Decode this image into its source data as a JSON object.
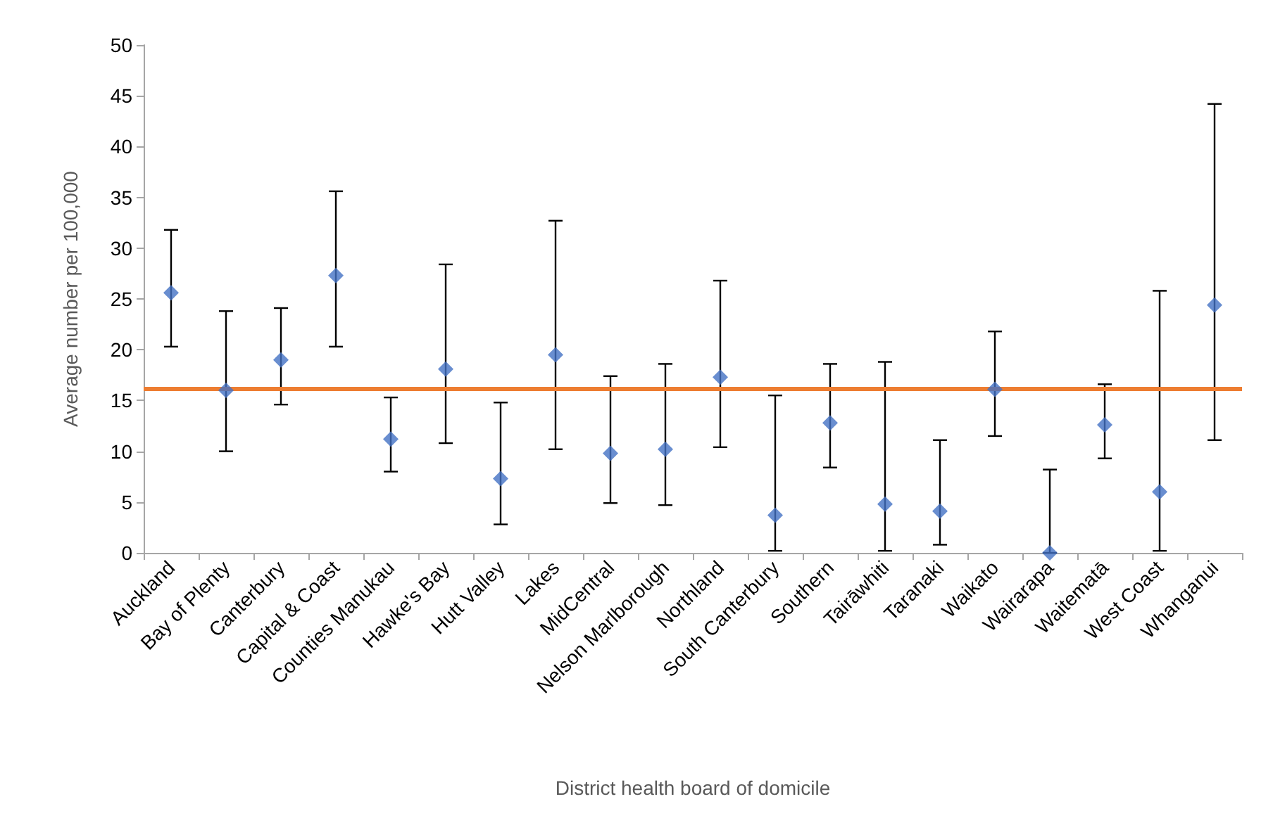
{
  "chart_data": {
    "type": "scatter",
    "xlabel": "District health board of domicile",
    "ylabel": "Average number per 100,000",
    "categories": [
      "Auckland",
      "Bay of Plenty",
      "Canterbury",
      "Capital & Coast",
      "Counties Manukau",
      "Hawke's Bay",
      "Hutt Valley",
      "Lakes",
      "MidCentral",
      "Nelson Marlborough",
      "Northland",
      "South Canterbury",
      "Southern",
      "Tairāwhiti",
      "Taranaki",
      "Waikato",
      "Wairarapa",
      "Waitematā",
      "West Coast",
      "Whanganui"
    ],
    "series": [
      {
        "color": "#4472c4",
        "marker": "diamond",
        "values": [
          25.6,
          16.0,
          19.0,
          27.3,
          11.2,
          18.1,
          7.3,
          19.5,
          9.8,
          10.2,
          17.3,
          3.7,
          12.8,
          4.8,
          4.1,
          16.1,
          0.0,
          12.6,
          6.0,
          24.4
        ],
        "errors": [
          [
            20.3,
            31.8
          ],
          [
            10.0,
            23.8
          ],
          [
            14.6,
            24.1
          ],
          [
            20.3,
            35.6
          ],
          [
            8.0,
            15.3
          ],
          [
            10.8,
            28.4
          ],
          [
            2.8,
            14.8
          ],
          [
            10.2,
            32.7
          ],
          [
            4.9,
            17.4
          ],
          [
            4.7,
            18.6
          ],
          [
            10.4,
            26.8
          ],
          [
            0.2,
            15.5
          ],
          [
            8.4,
            18.6
          ],
          [
            0.2,
            18.8
          ],
          [
            0.8,
            11.1
          ],
          [
            11.5,
            21.8
          ],
          [
            0.0,
            8.2
          ],
          [
            9.3,
            16.6
          ],
          [
            0.2,
            25.8
          ],
          [
            11.1,
            44.2
          ]
        ]
      }
    ],
    "ref_lines": [
      {
        "axis": "y",
        "value": 16.2,
        "color": "#ed7d31"
      }
    ],
    "ylim": [
      0,
      50
    ],
    "yticks": [
      0,
      5,
      10,
      15,
      20,
      25,
      30,
      35,
      40,
      45,
      50
    ],
    "grid": false
  }
}
